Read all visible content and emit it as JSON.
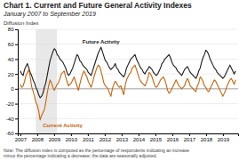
{
  "chart_data": {
    "type": "line",
    "title": "Chart 1. Current and Future General Activity Indexes",
    "subtitle": "January 2007 to September 2019",
    "y_label": "Diffusion Index",
    "note": "Note: The diffusion index is computed as the percentage of respondents indicating an increase\nminus the percentage indicating a decrease; the data are seasonally adjusted.",
    "grid": true,
    "xlim": [
      2006.85,
      2019.9
    ],
    "xticks": [
      2007,
      2008,
      2009,
      2010,
      2011,
      2012,
      2013,
      2014,
      2015,
      2016,
      2017,
      2018,
      2019
    ],
    "ylim": [
      -60,
      80
    ],
    "yticks": [
      -60,
      -40,
      -20,
      0,
      20,
      40,
      60,
      80
    ],
    "shaded_range": [
      2007.917,
      2009.167
    ],
    "x": [
      2007,
      2007.0839,
      2007.1678,
      2007.2516,
      2007.3355,
      2007.4194,
      2007.5033,
      2007.5872,
      2007.6711,
      2007.7549,
      2007.8388,
      2007.9227,
      2008.0066,
      2008.0905,
      2008.1743,
      2008.2582,
      2008.3421,
      2008.426,
      2008.5099,
      2008.5938,
      2008.6776,
      2008.7615,
      2008.8454,
      2008.9293,
      2009.0132,
      2009.097,
      2009.1809,
      2009.2648,
      2009.3487,
      2009.4326,
      2009.5164,
      2009.6003,
      2009.6842,
      2009.7681,
      2009.852,
      2009.9359,
      2010.0197,
      2010.1036,
      2010.1875,
      2010.2714,
      2010.3553,
      2010.4391,
      2010.523,
      2010.6069,
      2010.6908,
      2010.7747,
      2010.8586,
      2010.9424,
      2011.0263,
      2011.1102,
      2011.1941,
      2011.278,
      2011.3618,
      2011.4457,
      2011.5296,
      2011.6135,
      2011.6974,
      2011.7813,
      2011.8651,
      2011.949,
      2012.0329,
      2012.1168,
      2012.2007,
      2012.2845,
      2012.3684,
      2012.4523,
      2012.5362,
      2012.6201,
      2012.7039,
      2012.7878,
      2012.8717,
      2012.9556,
      2013.0395,
      2013.1234,
      2013.2072,
      2013.2911,
      2013.375,
      2013.4589,
      2013.5428,
      2013.6266,
      2013.7105,
      2013.7944,
      2013.8783,
      2013.9622,
      2014.0461,
      2014.1299,
      2014.2138,
      2014.2977,
      2014.3816,
      2014.4655,
      2014.5493,
      2014.6332,
      2014.7171,
      2014.801,
      2014.8849,
      2014.9688,
      2015.0526,
      2015.1365,
      2015.2204,
      2015.3043,
      2015.3882,
      2015.472,
      2015.5559,
      2015.6398,
      2015.7237,
      2015.8076,
      2015.8914,
      2015.9753,
      2016.0592,
      2016.1431,
      2016.227,
      2016.3109,
      2016.3947,
      2016.4786,
      2016.5625,
      2016.6464,
      2016.7303,
      2016.8141,
      2016.898,
      2016.9819,
      2017.0658,
      2017.1497,
      2017.2336,
      2017.3174,
      2017.4013,
      2017.4852,
      2017.5691,
      2017.653,
      2017.7368,
      2017.8207,
      2017.9046,
      2017.9885,
      2018.0724,
      2018.1563,
      2018.2401,
      2018.324,
      2018.4079,
      2018.4918,
      2018.5757,
      2018.6595,
      2018.7434,
      2018.8273,
      2018.9112,
      2018.9951,
      2019.0789,
      2019.1628,
      2019.2467,
      2019.3306,
      2019.4145,
      2019.4984,
      2019.5822,
      2019.6661,
      2019.75
    ],
    "series": [
      {
        "name": "Future Activity",
        "color": "#1a1a1a",
        "values": [
          24,
          20,
          18,
          26,
          30,
          34,
          28,
          22,
          18,
          12,
          8,
          2,
          -2,
          -8,
          -12,
          -10,
          -6,
          2,
          8,
          18,
          28,
          38,
          44,
          50,
          54,
          52,
          46,
          44,
          40,
          38,
          36,
          32,
          28,
          22,
          18,
          20,
          24,
          28,
          34,
          40,
          46,
          44,
          38,
          36,
          32,
          30,
          28,
          26,
          22,
          20,
          18,
          24,
          30,
          36,
          42,
          48,
          52,
          56,
          50,
          44,
          38,
          36,
          32,
          28,
          26,
          28,
          30,
          34,
          28,
          26,
          22,
          20,
          18,
          16,
          20,
          28,
          32,
          36,
          40,
          42,
          44,
          46,
          40,
          36,
          32,
          28,
          26,
          22,
          20,
          24,
          26,
          30,
          28,
          26,
          22,
          20,
          18,
          20,
          24,
          28,
          34,
          36,
          40,
          42,
          44,
          46,
          42,
          36,
          32,
          30,
          28,
          24,
          22,
          20,
          18,
          22,
          26,
          28,
          30,
          26,
          22,
          20,
          18,
          16,
          14,
          18,
          24,
          28,
          36,
          42,
          46,
          52,
          50,
          46,
          40,
          36,
          32,
          28,
          26,
          22,
          20,
          18,
          16,
          14,
          16,
          20,
          24,
          28,
          32,
          28,
          24,
          20,
          24
        ]
      },
      {
        "name": "Current Activity",
        "color": "#c8630a",
        "values": [
          6,
          2,
          4,
          10,
          18,
          22,
          26,
          16,
          3,
          -3,
          -10,
          -18,
          -22,
          -30,
          -42,
          -36,
          -32,
          -28,
          -18,
          -6,
          4,
          12,
          8,
          2,
          -2,
          2,
          6,
          8,
          14,
          20,
          22,
          24,
          16,
          10,
          4,
          6,
          8,
          12,
          16,
          10,
          4,
          -2,
          6,
          14,
          20,
          24,
          20,
          16,
          10,
          6,
          2,
          8,
          16,
          22,
          28,
          32,
          30,
          24,
          16,
          8,
          4,
          2,
          0,
          -6,
          -10,
          0,
          6,
          10,
          8,
          4,
          2,
          4,
          -2,
          -8,
          4,
          12,
          16,
          20,
          22,
          28,
          30,
          32,
          26,
          20,
          14,
          10,
          8,
          6,
          4,
          8,
          14,
          22,
          20,
          16,
          10,
          4,
          2,
          4,
          8,
          12,
          14,
          16,
          12,
          6,
          -2,
          -6,
          -4,
          0,
          4,
          8,
          12,
          8,
          4,
          2,
          0,
          2,
          4,
          10,
          14,
          10,
          4,
          2,
          0,
          -2,
          -4,
          4,
          8,
          16,
          14,
          10,
          4,
          2,
          -2,
          -4,
          0,
          4,
          8,
          12,
          10,
          6,
          2,
          -2,
          -6,
          -10,
          -6,
          -2,
          4,
          8,
          12,
          14,
          10,
          6,
          12
        ]
      }
    ]
  }
}
